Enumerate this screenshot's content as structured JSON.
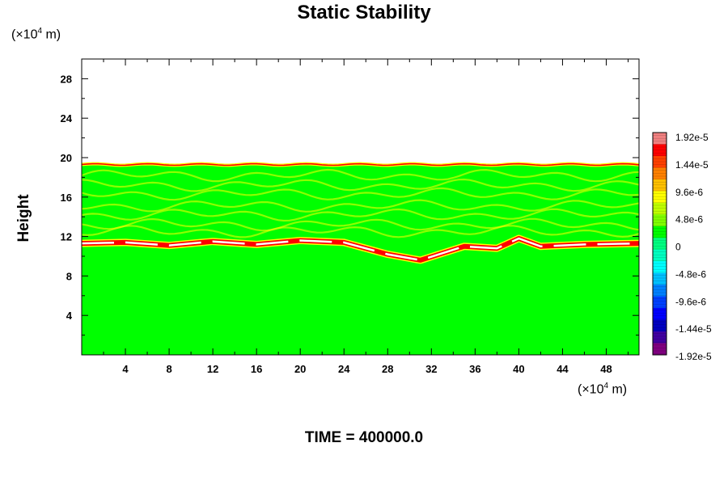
{
  "chart_data": {
    "type": "heatmap",
    "title": "Static Stability",
    "ylabel": "Height",
    "xlabel": "",
    "x_unit": "(×10^4 m)",
    "y_unit": "(×10^4 m)",
    "xlim": [
      0,
      51
    ],
    "ylim": [
      0,
      30
    ],
    "x_ticks": [
      "4",
      "8",
      "12",
      "16",
      "20",
      "24",
      "28",
      "32",
      "36",
      "40",
      "44",
      "48"
    ],
    "y_ticks": [
      "4",
      "8",
      "12",
      "16",
      "20",
      "24",
      "28"
    ],
    "colorbar": {
      "labels": [
        "1.92e-5",
        "1.44e-5",
        "9.6e-6",
        "4.8e-6",
        "0",
        "-4.8e-6",
        "-9.6e-6",
        "-1.44e-5",
        "-1.92e-5"
      ],
      "colors": [
        "#f08080",
        "#ff0000",
        "#ff4000",
        "#ff8000",
        "#ffc000",
        "#ffff00",
        "#c0ff00",
        "#80ff00",
        "#00ff00",
        "#00ff80",
        "#00ffc0",
        "#00ffff",
        "#00c0ff",
        "#0080ff",
        "#0040ff",
        "#0000ff",
        "#0000c0",
        "#4000a0",
        "#800080"
      ]
    },
    "layers": {
      "stable_top_height": 19.3,
      "tropopause_height_profile": [
        {
          "x": 0,
          "y": 11.3
        },
        {
          "x": 4,
          "y": 11.4
        },
        {
          "x": 8,
          "y": 11.1
        },
        {
          "x": 12,
          "y": 11.5
        },
        {
          "x": 16,
          "y": 11.2
        },
        {
          "x": 20,
          "y": 11.6
        },
        {
          "x": 24,
          "y": 11.4
        },
        {
          "x": 28,
          "y": 10.2
        },
        {
          "x": 31,
          "y": 9.6
        },
        {
          "x": 33,
          "y": 10.3
        },
        {
          "x": 35,
          "y": 11.0
        },
        {
          "x": 38,
          "y": 10.8
        },
        {
          "x": 40,
          "y": 11.8
        },
        {
          "x": 42,
          "y": 11.0
        },
        {
          "x": 46,
          "y": 11.2
        },
        {
          "x": 51,
          "y": 11.3
        }
      ],
      "background_color": "#00ff00",
      "band_color": "#ffff00",
      "strong_color": "#ff0000",
      "max_color": "#ffffff"
    }
  },
  "footer": {
    "label": "TIME = 400000.0"
  }
}
